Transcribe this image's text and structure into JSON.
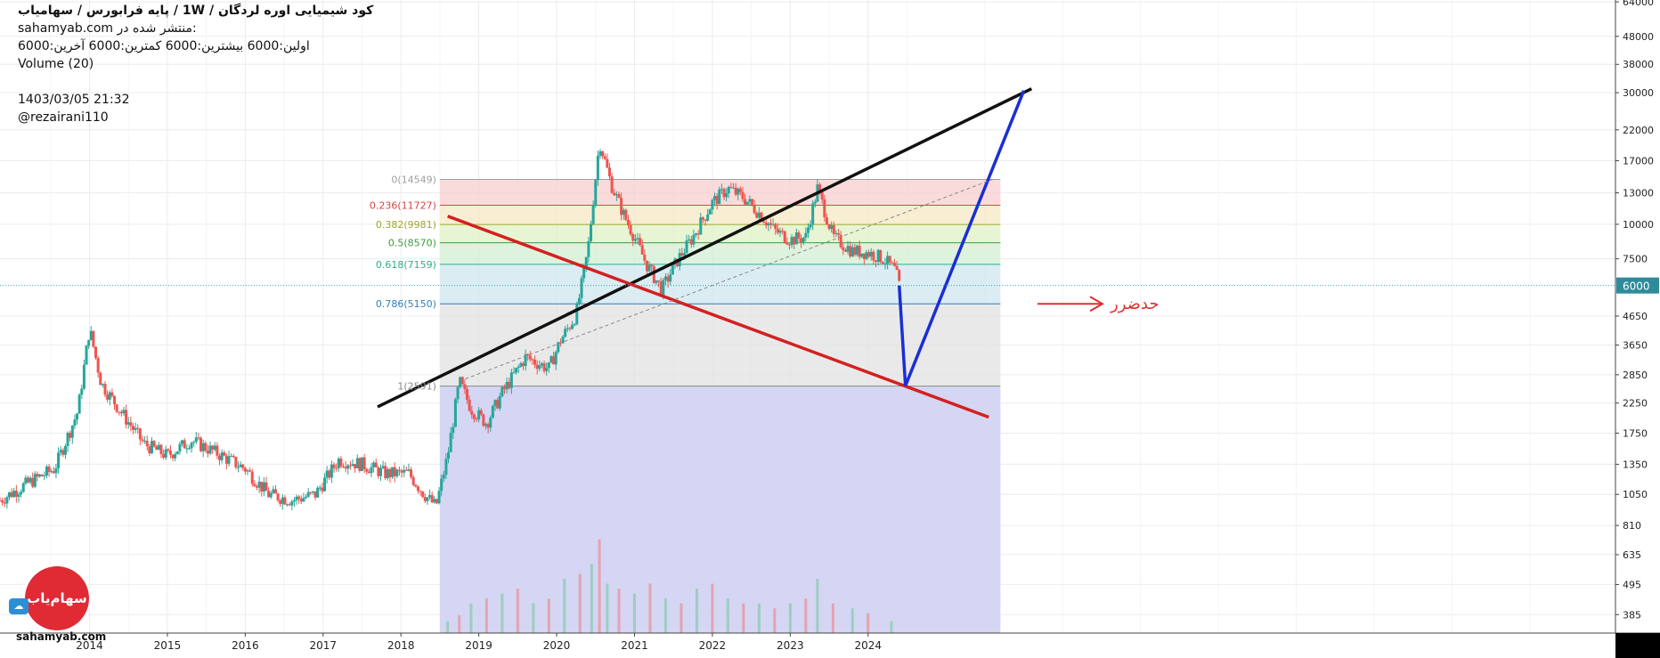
{
  "header": {
    "title": "کود شیمیایی اوره لردگان /  1W  /  پایه فرابورس / سهامیاب",
    "published_label": "منتشر شده در:",
    "published_site": "sahamyab.com",
    "ohlc": "اولین:6000  بیشترین:6000  کمترین:6000  آخرین:6000",
    "volume_label": "Volume (20)",
    "datetime": "1403/03/05 21:32",
    "user": "@rezairani110"
  },
  "logo": {
    "text": "سهام‌یاب",
    "watermark": "sahamyab.com"
  },
  "chart_data": {
    "type": "candlestick",
    "y_scale": "log",
    "ylim": [
      330,
      65000
    ],
    "y_ticks": [
      64000,
      48000,
      38000,
      30000,
      22000,
      17000,
      13000,
      10000,
      7500,
      4650,
      3650,
      2850,
      2250,
      1750,
      1350,
      1050,
      810,
      635,
      495,
      385
    ],
    "x_ticks": [
      "2014",
      "2015",
      "2016",
      "2017",
      "2018",
      "2019",
      "2020",
      "2021",
      "2022",
      "2023",
      "2024"
    ],
    "x_tick_values": [
      2014.0,
      2015.0,
      2016.0,
      2017.0,
      2018.0,
      2019.0,
      2020.0,
      2021.0,
      2022.0,
      2023.0,
      2024.0
    ],
    "xlim": [
      2012.85,
      2033.6
    ],
    "last_price": {
      "value": 6000,
      "label": "6000"
    },
    "price_path": [
      [
        2012.85,
        1000
      ],
      [
        2013.2,
        1150
      ],
      [
        2013.55,
        1300
      ],
      [
        2013.85,
        2100
      ],
      [
        2014.0,
        4200
      ],
      [
        2014.15,
        2650
      ],
      [
        2014.4,
        2100
      ],
      [
        2014.7,
        1600
      ],
      [
        2015.0,
        1450
      ],
      [
        2015.3,
        1650
      ],
      [
        2015.6,
        1500
      ],
      [
        2016.0,
        1300
      ],
      [
        2016.3,
        1050
      ],
      [
        2016.6,
        1000
      ],
      [
        2016.9,
        1050
      ],
      [
        2017.2,
        1400
      ],
      [
        2017.5,
        1350
      ],
      [
        2017.8,
        1250
      ],
      [
        2018.1,
        1250
      ],
      [
        2018.3,
        1050
      ],
      [
        2018.45,
        950
      ],
      [
        2018.6,
        1450
      ],
      [
        2018.75,
        2700
      ],
      [
        2018.9,
        2150
      ],
      [
        2019.1,
        1900
      ],
      [
        2019.3,
        2450
      ],
      [
        2019.6,
        3300
      ],
      [
        2019.9,
        3000
      ],
      [
        2020.05,
        3800
      ],
      [
        2020.25,
        4700
      ],
      [
        2020.4,
        8000
      ],
      [
        2020.55,
        20000
      ],
      [
        2020.7,
        14000
      ],
      [
        2020.85,
        11000
      ],
      [
        2021.0,
        9000
      ],
      [
        2021.15,
        7200
      ],
      [
        2021.35,
        5800
      ],
      [
        2021.55,
        7400
      ],
      [
        2021.75,
        9000
      ],
      [
        2022.0,
        12000
      ],
      [
        2022.2,
        13500
      ],
      [
        2022.4,
        12500
      ],
      [
        2022.6,
        11000
      ],
      [
        2022.8,
        9500
      ],
      [
        2023.0,
        8800
      ],
      [
        2023.2,
        9000
      ],
      [
        2023.35,
        13500
      ],
      [
        2023.55,
        9000
      ],
      [
        2023.8,
        8000
      ],
      [
        2024.0,
        7900
      ],
      [
        2024.2,
        7500
      ],
      [
        2024.35,
        6800
      ],
      [
        2024.4,
        6000
      ]
    ],
    "volume_bars": [
      [
        2018.6,
        0.12
      ],
      [
        2018.75,
        0.18
      ],
      [
        2018.9,
        0.3
      ],
      [
        2019.1,
        0.35
      ],
      [
        2019.3,
        0.4
      ],
      [
        2019.5,
        0.45
      ],
      [
        2019.7,
        0.3
      ],
      [
        2019.9,
        0.35
      ],
      [
        2020.1,
        0.55
      ],
      [
        2020.3,
        0.6
      ],
      [
        2020.45,
        0.7
      ],
      [
        2020.55,
        0.95
      ],
      [
        2020.65,
        0.5
      ],
      [
        2020.8,
        0.45
      ],
      [
        2021.0,
        0.4
      ],
      [
        2021.2,
        0.5
      ],
      [
        2021.4,
        0.35
      ],
      [
        2021.6,
        0.3
      ],
      [
        2021.8,
        0.45
      ],
      [
        2022.0,
        0.5
      ],
      [
        2022.2,
        0.35
      ],
      [
        2022.4,
        0.3
      ],
      [
        2022.6,
        0.3
      ],
      [
        2022.8,
        0.25
      ],
      [
        2023.0,
        0.3
      ],
      [
        2023.2,
        0.35
      ],
      [
        2023.35,
        0.55
      ],
      [
        2023.55,
        0.3
      ],
      [
        2023.8,
        0.25
      ],
      [
        2024.0,
        0.2
      ],
      [
        2024.3,
        0.12
      ]
    ],
    "fibonacci": {
      "x_range": [
        2018.5,
        2025.7
      ],
      "levels": [
        {
          "label": "0(14549)",
          "value": 14549,
          "color": "#9e9e9e",
          "fill": "#f8cfcf"
        },
        {
          "label": "0.236(11727)",
          "value": 11727,
          "color": "#d64545",
          "fill": "#f6e8c4"
        },
        {
          "label": "0.382(9981)",
          "value": 9981,
          "color": "#9fa829",
          "fill": "#dff1c6"
        },
        {
          "label": "0.5(8570)",
          "value": 8570,
          "color": "#3a9e3a",
          "fill": "#d2efd2"
        },
        {
          "label": "0.618(7159)",
          "value": 7159,
          "color": "#2ab08a",
          "fill": "#cfe6ef"
        },
        {
          "label": "0.786(5150)",
          "value": 5150,
          "color": "#2e7fb8",
          "fill": "#e2e2e2"
        },
        {
          "label": "1(2591)",
          "value": 2591,
          "color": "#8a8a8a",
          "fill": "#cfd1f2"
        }
      ],
      "bottom_fill": "#cfd1f2"
    },
    "trendlines": [
      {
        "name": "black-support",
        "color": "#111111",
        "points": [
          [
            2017.7,
            2180
          ],
          [
            2026.1,
            31000
          ]
        ]
      },
      {
        "name": "red-resistance",
        "color": "#d42020",
        "points": [
          [
            2018.6,
            10700
          ],
          [
            2025.55,
            2000
          ]
        ]
      },
      {
        "name": "blue-drop",
        "color": "#1a2ed6",
        "points": [
          [
            2024.4,
            6000
          ],
          [
            2024.48,
            2600
          ]
        ]
      },
      {
        "name": "blue-rise",
        "color": "#1a2ed6",
        "points": [
          [
            2024.48,
            2600
          ],
          [
            2026.0,
            30500
          ]
        ]
      },
      {
        "name": "dashed-mid",
        "color": "#888888",
        "dashed": true,
        "points": [
          [
            2018.75,
            2700
          ],
          [
            2025.6,
            14549
          ]
        ]
      }
    ],
    "annotation": {
      "text": "حدضرر",
      "color": "#e03030"
    }
  }
}
